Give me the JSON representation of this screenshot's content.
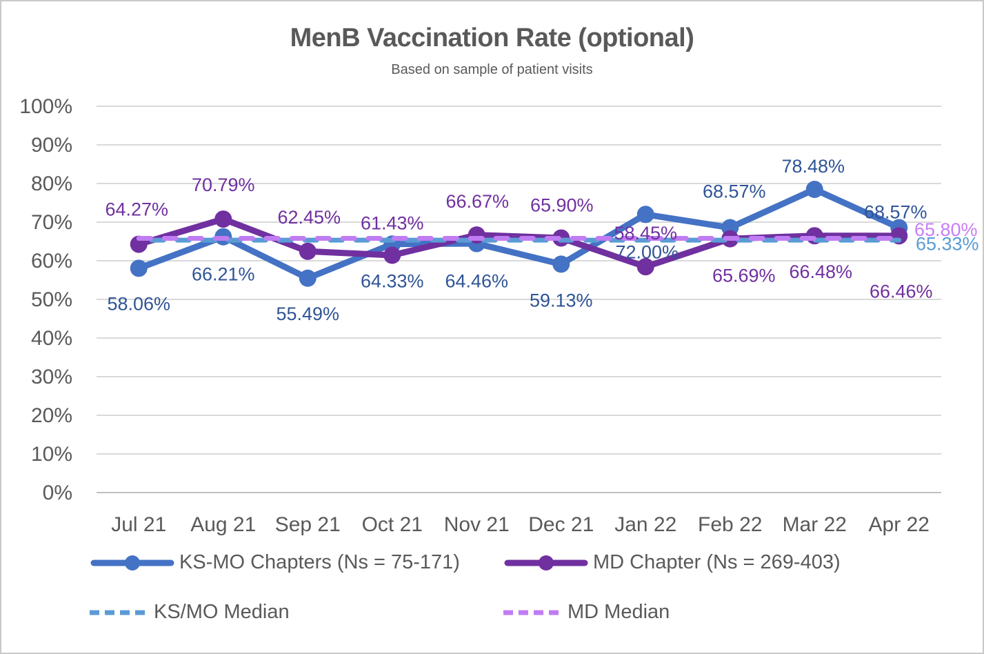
{
  "window": {
    "background": "#ffffff",
    "border_color": "#c9c9c9"
  },
  "chart_data": {
    "type": "line",
    "title": "MenB Vaccination Rate (optional)",
    "subtitle": "Based on sample of patient visits",
    "categories": [
      "Jul 21",
      "Aug 21",
      "Sep 21",
      "Oct 21",
      "Nov 21",
      "Dec 21",
      "Jan 22",
      "Feb 22",
      "Mar 22",
      "Apr 22"
    ],
    "y_axis": {
      "min": 0,
      "max": 100,
      "step": 10,
      "tick_labels": [
        "0%",
        "10%",
        "20%",
        "30%",
        "40%",
        "50%",
        "60%",
        "70%",
        "80%",
        "90%",
        "100%"
      ],
      "grid": true,
      "gridline_color": "#d9d9d9",
      "baseline_color": "#bfbfbf",
      "tick_color": "#595959"
    },
    "series": [
      {
        "name": "KS-MO Chapters (Ns = 75-171)",
        "type": "line",
        "color": "#4472C4",
        "label_color": "#2F5496",
        "marker": "circle",
        "values": [
          58.06,
          66.21,
          55.49,
          64.33,
          64.46,
          59.13,
          72.0,
          68.57,
          78.48,
          68.57
        ],
        "labels": [
          "58.06%",
          "66.21%",
          "55.49%",
          "64.33%",
          "64.46%",
          "59.13%",
          "72.00%",
          "68.57%",
          "78.48%",
          "68.57%"
        ],
        "label_offsets": [
          [
            0,
            51
          ],
          [
            0,
            54
          ],
          [
            0,
            51
          ],
          [
            0,
            53
          ],
          [
            0,
            54
          ],
          [
            0,
            52
          ],
          [
            2,
            54
          ],
          [
            6,
            -53
          ],
          [
            -2,
            -34
          ],
          [
            -5,
            -23
          ]
        ]
      },
      {
        "name": "MD Chapter (Ns = 269-403)",
        "type": "line",
        "color": "#7030A0",
        "label_color": "#7030A0",
        "marker": "circle",
        "values": [
          64.27,
          70.79,
          62.45,
          61.43,
          66.67,
          65.9,
          58.45,
          65.69,
          66.48,
          66.46
        ],
        "labels": [
          "64.27%",
          "70.79%",
          "62.45%",
          "61.43%",
          "66.67%",
          "65.90%",
          "58.45%",
          "65.69%",
          "66.48%",
          "66.46%"
        ],
        "label_offsets": [
          [
            -3,
            -51
          ],
          [
            0,
            -50
          ],
          [
            2,
            -50
          ],
          [
            0,
            -47
          ],
          [
            1,
            -49
          ],
          [
            1,
            -48
          ],
          [
            0,
            -49
          ],
          [
            20,
            53
          ],
          [
            9,
            52
          ],
          [
            3,
            80
          ]
        ]
      },
      {
        "name": "KS/MO Median",
        "type": "median",
        "color": "#5B9BD5",
        "label_color": "#5B9BD5",
        "value": 65.33,
        "label": "65.33%",
        "label_offset": [
          70,
          5
        ],
        "dash_offset": 18
      },
      {
        "name": "MD Median",
        "type": "median",
        "color": "#C07CF2",
        "label_color": "#C77EF7",
        "value": 65.8,
        "label": "65.80%",
        "label_offset": [
          68,
          -13
        ],
        "dash_offset": 0
      }
    ],
    "legend": {
      "position": "bottom",
      "rows": 2
    }
  }
}
